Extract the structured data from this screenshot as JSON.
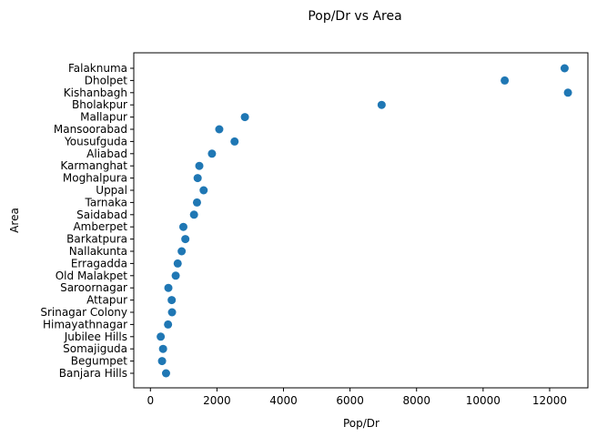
{
  "chart_data": {
    "type": "scatter",
    "title": "Pop/Dr vs Area",
    "xlabel": "Pop/Dr",
    "ylabel": "Area",
    "xlim": [
      -500,
      13150
    ],
    "x_ticks": [
      0,
      2000,
      4000,
      6000,
      8000,
      10000,
      12000
    ],
    "x_tick_labels": [
      "0",
      "2000",
      "4000",
      "6000",
      "8000",
      "10000",
      "12000"
    ],
    "grid": false,
    "marker_color": "#1f77b4",
    "categories": [
      "Banjara Hills",
      "Begumpet",
      "Somajiguda",
      "Jubilee Hills",
      "Himayathnagar",
      "Srinagar Colony",
      "Attapur",
      "Saroornagar",
      "Old Malakpet",
      "Erragadda",
      "Nallakunta",
      "Barkatpura",
      "Amberpet",
      "Saidabad",
      "Tarnaka",
      "Uppal",
      "Moghalpura",
      "Karmanghat",
      "Aliabad",
      "Yousufguda",
      "Mansoorabad",
      "Mallapur",
      "Bholakpur",
      "Kishanbagh",
      "Dholpet",
      "Falaknuma"
    ],
    "values": [
      470,
      350,
      380,
      310,
      530,
      650,
      640,
      540,
      760,
      820,
      940,
      1050,
      990,
      1310,
      1400,
      1600,
      1420,
      1470,
      1850,
      2530,
      2070,
      2840,
      6950,
      12550,
      10650,
      12450
    ]
  }
}
